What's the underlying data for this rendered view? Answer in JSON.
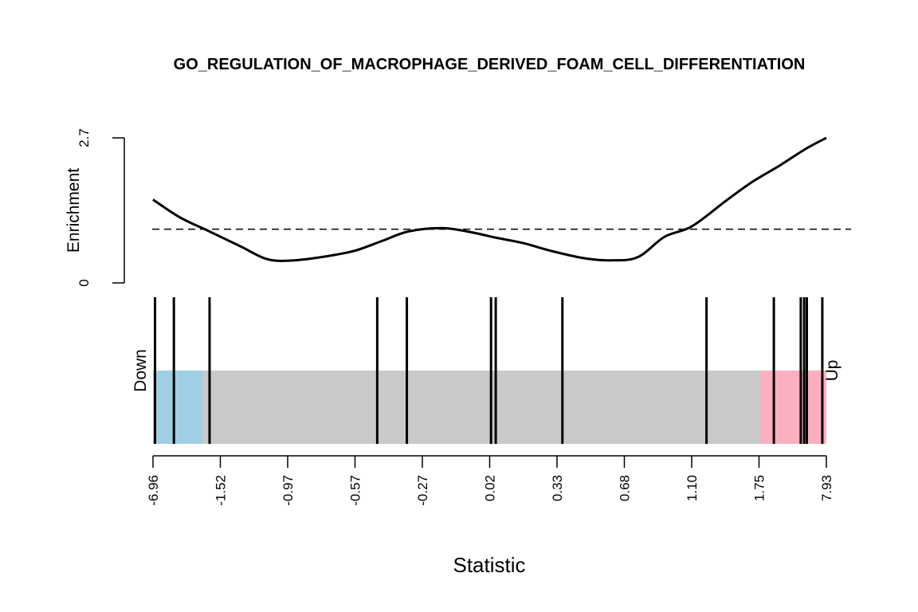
{
  "chart_data": {
    "type": "barcode-enrichment",
    "title": "GO_REGULATION_OF_MACROPHAGE_DERIVED_FOAM_CELL_DIFFERENTIATION",
    "xlabel": "Statistic",
    "ylabel": "Enrichment",
    "down_label": "Down",
    "up_label": "Up",
    "enrichment_ylim": [
      0,
      2.7
    ],
    "enrichment_yticks": [
      "0",
      "2.7"
    ],
    "expected_enrichment": 1.0,
    "x_rank_range": [
      0,
      1
    ],
    "x_tick_labels": [
      "-6.96",
      "-1.52",
      "-0.97",
      "-0.57",
      "-0.27",
      "0.02",
      "0.33",
      "0.68",
      "1.10",
      "1.75",
      "7.93"
    ],
    "down_region_end": 0.073,
    "up_region_start": 0.902,
    "colors": {
      "down": "#9ecfe3",
      "up": "#fbafc0",
      "middle": "#c9c9c9",
      "line": "#000000"
    },
    "gene_positions": [
      0.003,
      0.031,
      0.084,
      0.333,
      0.377,
      0.502,
      0.509,
      0.608,
      0.822,
      0.922,
      0.962,
      0.967,
      0.971,
      0.994
    ],
    "enrichment_curve": {
      "x": [
        0.0,
        0.04,
        0.08,
        0.13,
        0.17,
        0.21,
        0.26,
        0.3,
        0.34,
        0.38,
        0.43,
        0.47,
        0.51,
        0.55,
        0.59,
        0.64,
        0.68,
        0.72,
        0.76,
        0.8,
        0.85,
        0.89,
        0.93,
        0.97,
        1.0
      ],
      "y": [
        1.55,
        1.22,
        0.98,
        0.68,
        0.44,
        0.42,
        0.5,
        0.6,
        0.78,
        0.96,
        1.02,
        0.95,
        0.84,
        0.74,
        0.6,
        0.46,
        0.42,
        0.48,
        0.86,
        1.05,
        1.52,
        1.88,
        2.18,
        2.5,
        2.7
      ]
    }
  }
}
